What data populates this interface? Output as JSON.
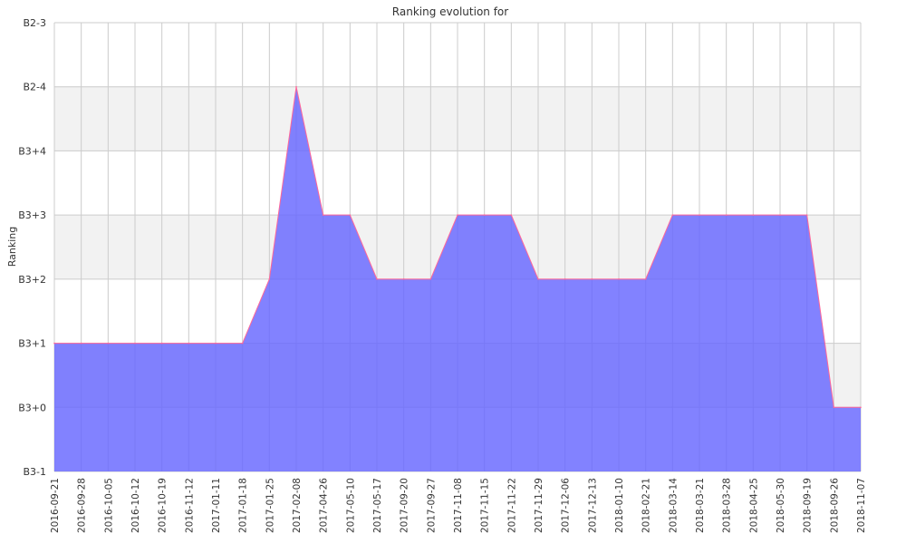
{
  "chart_data": {
    "type": "area",
    "title": "Ranking evolution for",
    "xlabel": "",
    "ylabel": "Ranking",
    "y_categories": [
      "B3-1",
      "B3+0",
      "B3+1",
      "B3+2",
      "B3+3",
      "B3+4",
      "B2-4",
      "B2-3"
    ],
    "x": [
      "2016-09-21",
      "2016-09-28",
      "2016-10-05",
      "2016-10-12",
      "2016-10-19",
      "2016-11-12",
      "2017-01-11",
      "2017-01-18",
      "2017-01-25",
      "2017-02-08",
      "2017-04-26",
      "2017-05-10",
      "2017-05-17",
      "2017-09-20",
      "2017-09-27",
      "2017-11-08",
      "2017-11-15",
      "2017-11-22",
      "2017-11-29",
      "2017-12-06",
      "2017-12-13",
      "2018-01-10",
      "2018-02-21",
      "2018-03-14",
      "2018-03-21",
      "2018-03-28",
      "2018-04-25",
      "2018-05-30",
      "2018-09-19",
      "2018-09-26",
      "2018-11-07"
    ],
    "series": [
      {
        "values": [
          "B3+1",
          "B3+1",
          "B3+1",
          "B3+1",
          "B3+1",
          "B3+1",
          "B3+1",
          "B3+1",
          "B3+2",
          "B2-4",
          "B3+3",
          "B3+3",
          "B3+2",
          "B3+2",
          "B3+2",
          "B3+3",
          "B3+3",
          "B3+3",
          "B3+2",
          "B3+2",
          "B3+2",
          "B3+2",
          "B3+2",
          "B3+3",
          "B3+3",
          "B3+3",
          "B3+3",
          "B3+3",
          "B3+3",
          "B3+0",
          "B3+0"
        ]
      }
    ],
    "grid": true,
    "colors": {
      "fill": "#6666ff",
      "line": "#ff6699",
      "grid": "#cccccc",
      "band": "#f2f2f2"
    }
  }
}
